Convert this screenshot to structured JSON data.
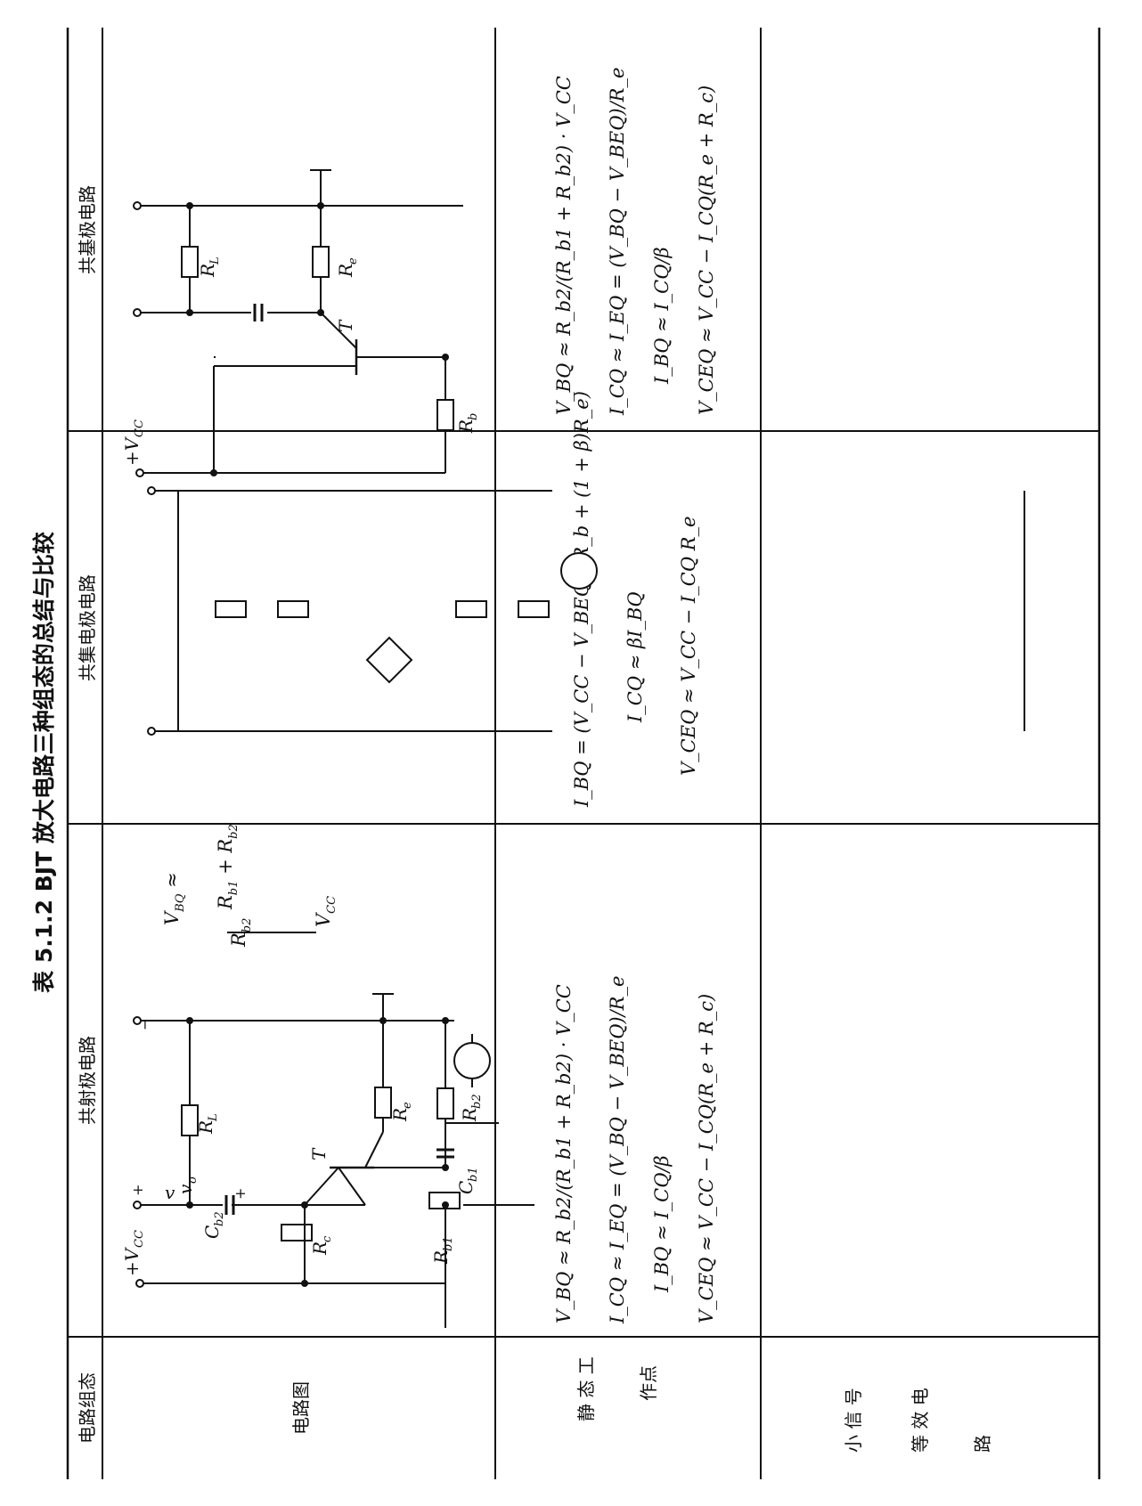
{
  "title": "表 5.1.2   BJT 放大电路三种组态的总结与比较",
  "header": {
    "config_label": "电路组态",
    "ce": "共射极电路",
    "cc": "共集电极电路",
    "cb": "共基极电路"
  },
  "rows": {
    "circuit": "电路图",
    "quiescent": "静态工作点",
    "small_signal": "小信号等效电路"
  },
  "quiescent_formulas": {
    "ce": [
      "V_BQ ≈ R_b2/(R_b1 + R_b2) · V_CC",
      "I_CQ ≈ I_EQ = (V_BQ − V_BEQ)/R_e",
      "I_BQ ≈ I_CQ/β",
      "V_CEQ ≈ V_CC − I_CQ(R_e + R_c)"
    ],
    "cc": [
      "I_BQ = (V_CC − V_BEQ)/(R_b + (1 + β)R_e)",
      "I_CQ ≈ βI_BQ",
      "V_CEQ ≈ V_CC − I_CQ R_e"
    ],
    "cb": [
      "V_BQ ≈ R_b2/(R_b1 + R_b2) · V_CC",
      "I_CQ ≈ I_EQ = (V_BQ − V_BEQ)/R_e",
      "I_BQ ≈ I_CQ/β",
      "V_CEQ ≈ V_CC − I_CQ(R_e + R_c)"
    ]
  }
}
